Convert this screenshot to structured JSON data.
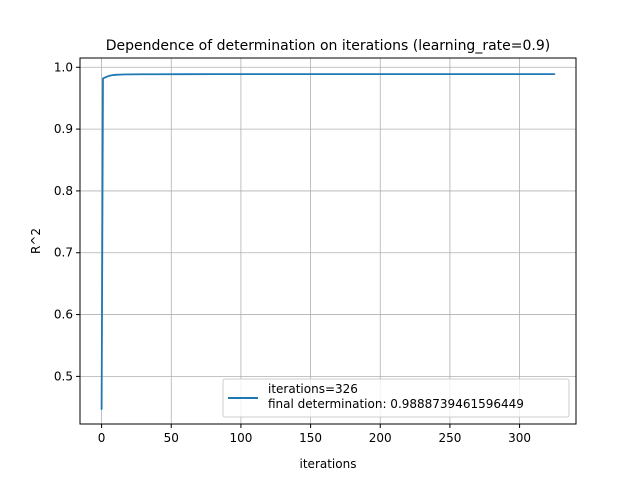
{
  "chart_data": {
    "type": "line",
    "title": "Dependence of determination on iterations (learning_rate=0.9)",
    "xlabel": "iterations",
    "ylabel": "R^2",
    "xlim": [
      -15.5,
      340.5
    ],
    "ylim": [
      0.423,
      1.015
    ],
    "xticks": [
      0,
      50,
      100,
      150,
      200,
      250,
      300
    ],
    "yticks": [
      0.5,
      0.6,
      0.7,
      0.8,
      0.9,
      1.0
    ],
    "ytick_labels": [
      "0.5",
      "0.6",
      "0.7",
      "0.8",
      "0.9",
      "1.0"
    ],
    "grid": true,
    "legend_position": "lower right",
    "legend": {
      "line1": "iterations=326",
      "line2": "final determination: 0.9888739461596449"
    },
    "series": [
      {
        "name": "iterations=326\nfinal determination: 0.9888739461596449",
        "color": "#1f77b4",
        "x": [
          0,
          1,
          2,
          4,
          6,
          8,
          10,
          15,
          20,
          30,
          40,
          60,
          80,
          100,
          150,
          200,
          250,
          300,
          325
        ],
        "y": [
          0.447,
          0.982,
          0.983,
          0.985,
          0.9865,
          0.9873,
          0.9878,
          0.9883,
          0.9885,
          0.9887,
          0.98875,
          0.98885,
          0.98887,
          0.98887,
          0.98887,
          0.98887,
          0.98887,
          0.98887,
          0.98887
        ]
      }
    ]
  }
}
